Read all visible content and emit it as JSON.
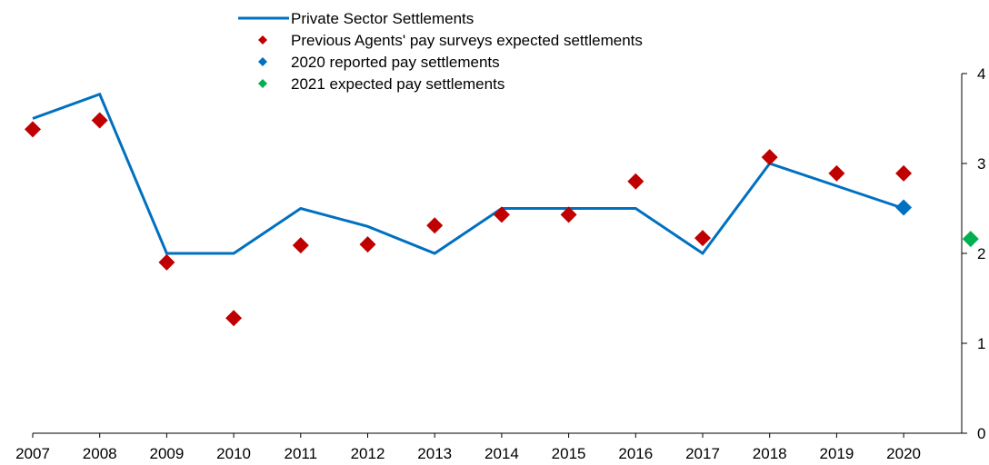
{
  "chart_data": {
    "type": "line",
    "title": "",
    "xlabel": "",
    "ylabel": "",
    "x": [
      "2007",
      "2008",
      "2009",
      "2010",
      "2011",
      "2012",
      "2013",
      "2014",
      "2015",
      "2016",
      "2017",
      "2018",
      "2019",
      "2020"
    ],
    "ylim": [
      0,
      4
    ],
    "yticks": [
      0,
      1,
      2,
      3,
      4
    ],
    "y_axis_position": "right",
    "grid": false,
    "legend_position": "top-center",
    "series": [
      {
        "name": "Private Sector Settlements",
        "kind": "line",
        "color": "#0070C0",
        "points": [
          {
            "x": 2007,
            "y": 3.5
          },
          {
            "x": 2008,
            "y": 3.77
          },
          {
            "x": 2009,
            "y": 2.0
          },
          {
            "x": 2010,
            "y": 2.0
          },
          {
            "x": 2011,
            "y": 2.5
          },
          {
            "x": 2012,
            "y": 2.3
          },
          {
            "x": 2013,
            "y": 2.0
          },
          {
            "x": 2014,
            "y": 2.5
          },
          {
            "x": 2015,
            "y": 2.5
          },
          {
            "x": 2016,
            "y": 2.5
          },
          {
            "x": 2017,
            "y": 2.0
          },
          {
            "x": 2018,
            "y": 3.0
          },
          {
            "x": 2019,
            "y": 2.75
          },
          {
            "x": 2020,
            "y": 2.5
          }
        ]
      },
      {
        "name": "Previous Agents' pay surveys expected settlements",
        "kind": "marker",
        "color": "#C00000",
        "points": [
          {
            "x": 2007,
            "y": 3.38
          },
          {
            "x": 2008,
            "y": 3.48
          },
          {
            "x": 2009,
            "y": 1.9
          },
          {
            "x": 2010,
            "y": 1.28
          },
          {
            "x": 2011,
            "y": 2.09
          },
          {
            "x": 2012,
            "y": 2.1
          },
          {
            "x": 2013,
            "y": 2.31
          },
          {
            "x": 2014,
            "y": 2.43
          },
          {
            "x": 2015,
            "y": 2.43
          },
          {
            "x": 2016,
            "y": 2.8
          },
          {
            "x": 2017,
            "y": 2.17
          },
          {
            "x": 2018,
            "y": 3.07
          },
          {
            "x": 2019,
            "y": 2.89
          },
          {
            "x": 2020,
            "y": 2.89
          }
        ]
      },
      {
        "name": "2020 reported pay settlements",
        "kind": "marker",
        "color": "#0070C0",
        "points": [
          {
            "x": 2020,
            "y": 2.51
          }
        ]
      },
      {
        "name": "2021 expected pay settlements",
        "kind": "marker",
        "color": "#00B050",
        "points": [
          {
            "x": 2021,
            "y": 2.16
          }
        ]
      }
    ]
  }
}
